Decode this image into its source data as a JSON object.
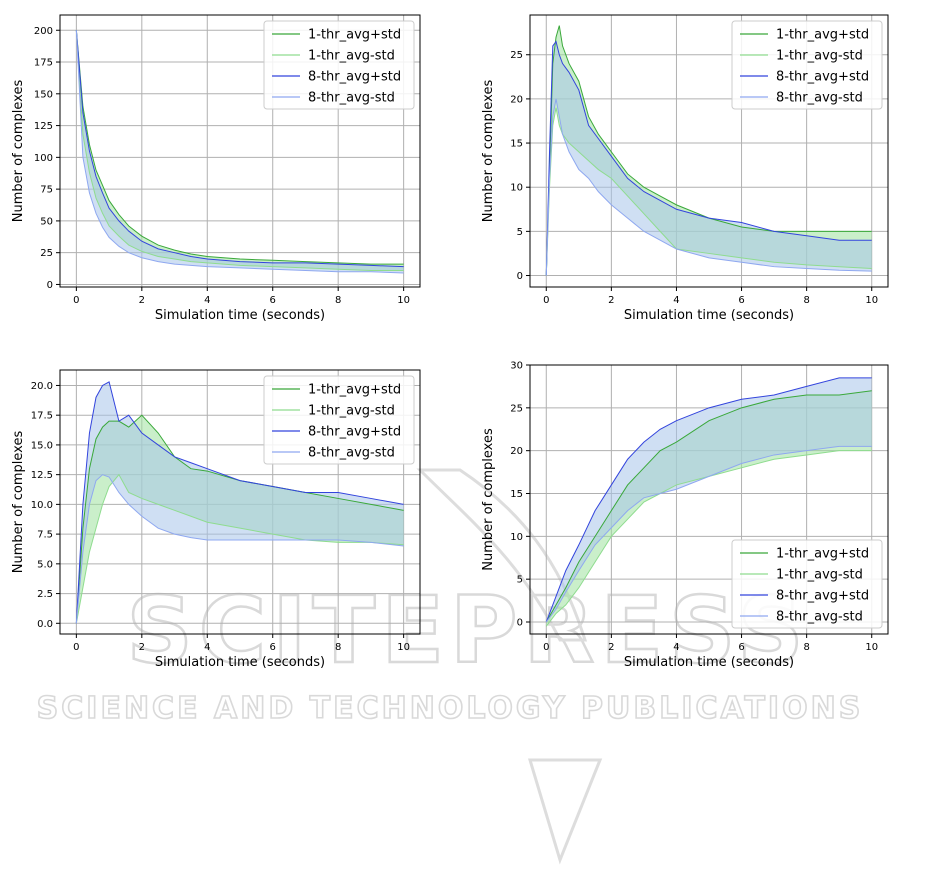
{
  "watermark": {
    "line1": "SCITEPRESS",
    "line2": "SCIENCE AND TECHNOLOGY PUBLICATIONS"
  },
  "colors": {
    "green_line": "#3aa83a",
    "green_light_line": "#8fdc8f",
    "blue_line": "#3344dd",
    "blue_light_line": "#8fa8f0",
    "green_fill": "#9fe29f",
    "blue_fill": "#a8c4ea",
    "overlap_fill": "#7fcfb0"
  },
  "chart_data": [
    {
      "type": "area",
      "xlabel": "Simulation time (seconds)",
      "ylabel": "Number of complexes",
      "xlim": [
        -0.5,
        10.5
      ],
      "ylim": [
        -2,
        212
      ],
      "xticks": [
        0,
        2,
        4,
        6,
        8,
        10
      ],
      "yticks": [
        0,
        25,
        50,
        75,
        100,
        125,
        150,
        175,
        200
      ],
      "grid": true,
      "legend_position": "top-right",
      "legend": [
        "1-thr_avg+std",
        "1-thr_avg-std",
        "8-thr_avg+std",
        "8-thr_avg-std"
      ],
      "series": [
        {
          "name": "1-thr_avg+std",
          "x": [
            0,
            0.2,
            0.4,
            0.6,
            0.8,
            1,
            1.3,
            1.6,
            2,
            2.5,
            3,
            3.5,
            4,
            5,
            6,
            7,
            8,
            9,
            10
          ],
          "values": [
            200,
            140,
            110,
            90,
            78,
            66,
            55,
            46,
            38,
            31,
            27,
            24,
            22,
            20,
            19,
            18,
            17,
            16,
            16
          ]
        },
        {
          "name": "1-thr_avg-std",
          "x": [
            0,
            0.2,
            0.4,
            0.6,
            0.8,
            1,
            1.3,
            1.6,
            2,
            2.5,
            3,
            3.5,
            4,
            5,
            6,
            7,
            8,
            9,
            10
          ],
          "values": [
            200,
            118,
            88,
            68,
            56,
            46,
            38,
            31,
            26,
            22,
            20,
            18,
            17,
            15,
            14,
            13,
            12,
            11,
            11
          ]
        },
        {
          "name": "8-thr_avg+std",
          "x": [
            0,
            0.2,
            0.4,
            0.6,
            0.8,
            1,
            1.3,
            1.6,
            2,
            2.5,
            3,
            3.5,
            4,
            5,
            6,
            7,
            8,
            9,
            10
          ],
          "values": [
            200,
            135,
            105,
            85,
            72,
            60,
            50,
            42,
            34,
            28,
            25,
            22,
            20,
            18,
            17,
            17,
            16,
            15,
            14
          ]
        },
        {
          "name": "8-thr_avg-std",
          "x": [
            0,
            0.2,
            0.4,
            0.6,
            0.8,
            1,
            1.3,
            1.6,
            2,
            2.5,
            3,
            3.5,
            4,
            5,
            6,
            7,
            8,
            9,
            10
          ],
          "values": [
            200,
            100,
            72,
            56,
            45,
            37,
            30,
            25,
            21,
            18,
            16,
            15,
            14,
            13,
            12,
            11,
            10,
            10,
            9
          ]
        }
      ]
    },
    {
      "type": "area",
      "xlabel": "Simulation time (seconds)",
      "ylabel": "Number of complexes",
      "xlim": [
        -0.5,
        10.5
      ],
      "ylim": [
        -1.3,
        29.5
      ],
      "xticks": [
        0,
        2,
        4,
        6,
        8,
        10
      ],
      "yticks": [
        0,
        5,
        10,
        15,
        20,
        25
      ],
      "grid": true,
      "legend_position": "top-right",
      "legend": [
        "1-thr_avg+std",
        "1-thr_avg-std",
        "8-thr_avg+std",
        "8-thr_avg-std"
      ],
      "series": [
        {
          "name": "1-thr_avg+std",
          "x": [
            0,
            0.1,
            0.2,
            0.3,
            0.4,
            0.5,
            0.7,
            1,
            1.3,
            1.6,
            2,
            2.5,
            3,
            3.5,
            4,
            5,
            6,
            7,
            8,
            9,
            10
          ],
          "values": [
            0,
            12,
            24,
            27,
            28.3,
            26,
            24,
            22,
            18,
            16,
            14,
            11.5,
            10,
            9,
            8,
            6.5,
            5.5,
            5,
            5,
            5,
            5
          ]
        },
        {
          "name": "1-thr_avg-std",
          "x": [
            0,
            0.1,
            0.2,
            0.3,
            0.4,
            0.5,
            0.7,
            1,
            1.3,
            1.6,
            2,
            2.5,
            3,
            3.5,
            4,
            5,
            6,
            7,
            8,
            9,
            10
          ],
          "values": [
            0,
            10,
            17,
            19,
            17,
            16,
            15,
            14,
            13,
            12,
            11,
            9,
            7,
            5,
            3,
            2.5,
            2,
            1.5,
            1.2,
            1,
            0.8
          ]
        },
        {
          "name": "8-thr_avg+std",
          "x": [
            0,
            0.1,
            0.2,
            0.3,
            0.4,
            0.5,
            0.7,
            1,
            1.3,
            1.6,
            2,
            2.5,
            3,
            3.5,
            4,
            5,
            6,
            7,
            8,
            9,
            10
          ],
          "values": [
            0,
            14,
            26,
            26.5,
            25,
            24,
            23,
            21,
            17,
            15.5,
            13.5,
            11,
            9.5,
            8.5,
            7.5,
            6.5,
            6,
            5,
            4.5,
            4,
            4
          ]
        },
        {
          "name": "8-thr_avg-std",
          "x": [
            0,
            0.1,
            0.2,
            0.3,
            0.4,
            0.5,
            0.7,
            1,
            1.3,
            1.6,
            2,
            2.5,
            3,
            3.5,
            4,
            5,
            6,
            7,
            8,
            9,
            10
          ],
          "values": [
            0,
            11,
            18,
            20,
            18,
            16,
            14,
            12,
            11,
            9.5,
            8,
            6.5,
            5,
            4,
            3,
            2,
            1.5,
            1,
            0.8,
            0.6,
            0.5
          ]
        }
      ]
    },
    {
      "type": "area",
      "xlabel": "Simulation time (seconds)",
      "ylabel": "Number of complexes",
      "xlim": [
        -0.5,
        10.5
      ],
      "ylim": [
        -0.9,
        21.3
      ],
      "xticks": [
        0,
        2,
        4,
        6,
        8,
        10
      ],
      "yticks": [
        0.0,
        2.5,
        5.0,
        7.5,
        10.0,
        12.5,
        15.0,
        17.5,
        20.0
      ],
      "yticklabels": [
        "0.0",
        "2.5",
        "5.0",
        "7.5",
        "10.0",
        "12.5",
        "15.0",
        "17.5",
        "20.0"
      ],
      "grid": true,
      "legend_position": "top-right",
      "legend": [
        "1-thr_avg+std",
        "1-thr_avg-std",
        "8-thr_avg+std",
        "8-thr_avg-std"
      ],
      "series": [
        {
          "name": "1-thr_avg+std",
          "x": [
            0,
            0.2,
            0.4,
            0.6,
            0.8,
            1,
            1.3,
            1.6,
            2,
            2.5,
            3,
            3.5,
            4,
            5,
            6,
            7,
            8,
            9,
            10
          ],
          "values": [
            0,
            8,
            13,
            15.5,
            16.5,
            17,
            17,
            16.5,
            17.5,
            16,
            14,
            13,
            12.8,
            12,
            11.5,
            11,
            10.5,
            10,
            9.5
          ]
        },
        {
          "name": "1-thr_avg-std",
          "x": [
            0,
            0.2,
            0.4,
            0.6,
            0.8,
            1,
            1.3,
            1.6,
            2,
            2.5,
            3,
            3.5,
            4,
            5,
            6,
            7,
            8,
            9,
            10
          ],
          "values": [
            0,
            3,
            6,
            8,
            10,
            11.5,
            12.5,
            11,
            10.5,
            10,
            9.5,
            9,
            8.5,
            8,
            7.5,
            7,
            6.8,
            6.8,
            6.6
          ]
        },
        {
          "name": "8-thr_avg+std",
          "x": [
            0,
            0.2,
            0.4,
            0.6,
            0.8,
            1,
            1.3,
            1.6,
            2,
            2.5,
            3,
            3.5,
            4,
            5,
            6,
            7,
            8,
            9,
            10
          ],
          "values": [
            0,
            10,
            16,
            19,
            20,
            20.3,
            17,
            17.5,
            16,
            15,
            14,
            13.5,
            13,
            12,
            11.5,
            11,
            11,
            10.5,
            10
          ]
        },
        {
          "name": "8-thr_avg-std",
          "x": [
            0,
            0.2,
            0.4,
            0.6,
            0.8,
            1,
            1.3,
            1.6,
            2,
            2.5,
            3,
            3.5,
            4,
            5,
            6,
            7,
            8,
            9,
            10
          ],
          "values": [
            0,
            6,
            10,
            12,
            12.5,
            12.3,
            11,
            10,
            9,
            8,
            7.5,
            7.2,
            7,
            7,
            7,
            7,
            7,
            6.8,
            6.5
          ]
        }
      ]
    },
    {
      "type": "area",
      "xlabel": "Simulation time (seconds)",
      "ylabel": "Number of complexes",
      "xlim": [
        -0.5,
        10.5
      ],
      "ylim": [
        -1.4,
        30.0
      ],
      "xticks": [
        0,
        2,
        4,
        6,
        8,
        10
      ],
      "yticks": [
        0,
        5,
        10,
        15,
        20,
        25,
        30
      ],
      "grid": true,
      "legend_position": "bottom-right",
      "legend": [
        "1-thr_avg+std",
        "1-thr_avg-std",
        "8-thr_avg+std",
        "8-thr_avg-std"
      ],
      "series": [
        {
          "name": "1-thr_avg+std",
          "x": [
            0,
            0.3,
            0.6,
            1,
            1.5,
            2,
            2.5,
            3,
            3.5,
            4,
            5,
            6,
            7,
            8,
            9,
            10
          ],
          "values": [
            0,
            2,
            4,
            7,
            10,
            13,
            16,
            18,
            20,
            21,
            23.5,
            25,
            26,
            26.5,
            26.5,
            27
          ]
        },
        {
          "name": "1-thr_avg-std",
          "x": [
            0,
            0.3,
            0.6,
            1,
            1.5,
            2,
            2.5,
            3,
            3.5,
            4,
            5,
            6,
            7,
            8,
            9,
            10
          ],
          "values": [
            -0.5,
            1,
            2,
            4,
            7,
            10,
            12,
            14,
            15,
            16,
            17,
            18,
            19,
            19.5,
            20,
            20
          ]
        },
        {
          "name": "8-thr_avg+std",
          "x": [
            0,
            0.3,
            0.6,
            1,
            1.5,
            2,
            2.5,
            3,
            3.5,
            4,
            5,
            6,
            7,
            8,
            9,
            10
          ],
          "values": [
            0,
            3,
            6,
            9,
            13,
            16,
            19,
            21,
            22.5,
            23.5,
            25,
            26,
            26.5,
            27.5,
            28.5,
            28.5
          ]
        },
        {
          "name": "8-thr_avg-std",
          "x": [
            0,
            0.3,
            0.6,
            1,
            1.5,
            2,
            2.5,
            3,
            3.5,
            4,
            5,
            6,
            7,
            8,
            9,
            10
          ],
          "values": [
            0,
            1.5,
            3.5,
            6,
            9,
            11,
            13,
            14.5,
            15,
            15.5,
            17,
            18.5,
            19.5,
            20,
            20.5,
            20.5
          ]
        }
      ]
    }
  ]
}
